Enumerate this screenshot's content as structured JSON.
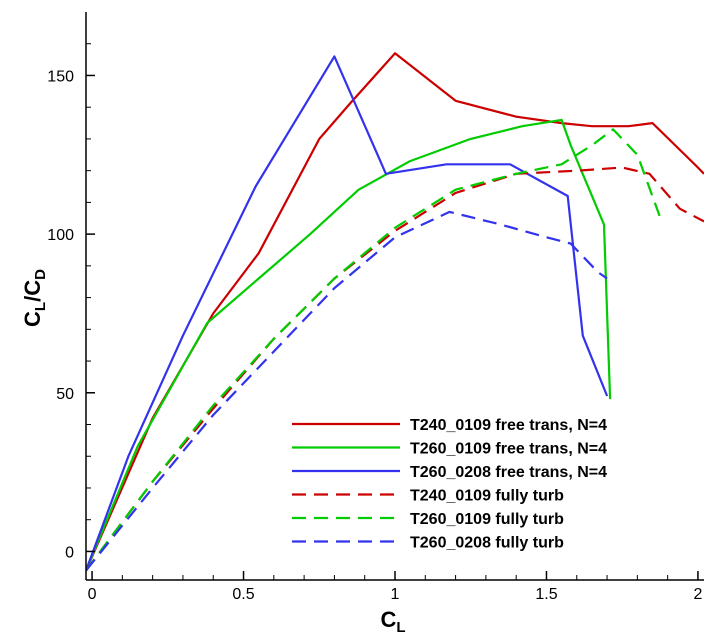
{
  "chart_data": {
    "type": "line",
    "title": "",
    "xlabel": "C_L",
    "ylabel": "C_L/C_D",
    "x_axis_main": "C",
    "x_axis_sub": "L",
    "y_axis_parts": [
      "C",
      "L",
      "/C",
      "D"
    ],
    "xlim": [
      -0.02,
      2.02
    ],
    "ylim": [
      -9,
      170
    ],
    "xticks": [
      0,
      0.5,
      1,
      1.5,
      2
    ],
    "xtick_labels": [
      "0",
      "0.5",
      "1",
      "1.5",
      "2"
    ],
    "yticks": [
      0,
      50,
      100,
      150
    ],
    "ytick_labels": [
      "0",
      "50",
      "100",
      "150"
    ],
    "grid": false,
    "legend_position": "bottom-right",
    "series": [
      {
        "name": "T240_0109 free trans, N=4",
        "color": "#cc0000",
        "dash": "solid",
        "x": [
          -0.02,
          0.2,
          0.4,
          0.55,
          0.75,
          0.85,
          1.0,
          1.2,
          1.4,
          1.55,
          1.65,
          1.77,
          1.85,
          2.0,
          2.02
        ],
        "y": [
          -6,
          42,
          75,
          94,
          130,
          141,
          157,
          142,
          137,
          135,
          134,
          134,
          135,
          121,
          119
        ]
      },
      {
        "name": "T260_0109 free trans, N=4",
        "color": "#00cc00",
        "dash": "solid",
        "x": [
          -0.02,
          0.15,
          0.38,
          0.55,
          0.72,
          0.88,
          1.05,
          1.25,
          1.42,
          1.55,
          1.58,
          1.69,
          1.71
        ],
        "y": [
          -6,
          33,
          72,
          86,
          100,
          114,
          123,
          130,
          134,
          136,
          128,
          103,
          48
        ]
      },
      {
        "name": "T260_0208 free trans, N=4",
        "color": "#3333ee",
        "dash": "solid",
        "x": [
          -0.02,
          0.12,
          0.3,
          0.54,
          0.8,
          0.97,
          1.17,
          1.38,
          1.57,
          1.62,
          1.7
        ],
        "y": [
          -6,
          30,
          68,
          115,
          156,
          119,
          122,
          122,
          112,
          68,
          49
        ]
      },
      {
        "name": "T240_0109 fully turb",
        "color": "#cc0000",
        "dash": "dashed",
        "x": [
          -0.02,
          0.2,
          0.4,
          0.6,
          0.8,
          1.0,
          1.2,
          1.4,
          1.6,
          1.75,
          1.84,
          1.94,
          2.02
        ],
        "y": [
          -6,
          22,
          45,
          67,
          86,
          101,
          113,
          119,
          120,
          121,
          119,
          108,
          104
        ]
      },
      {
        "name": "T260_0109 fully turb",
        "color": "#00cc00",
        "dash": "dashed",
        "x": [
          -0.02,
          0.2,
          0.4,
          0.6,
          0.8,
          1.0,
          1.2,
          1.4,
          1.55,
          1.65,
          1.72,
          1.8,
          1.88
        ],
        "y": [
          -6,
          22,
          46,
          67,
          86,
          102,
          114,
          119,
          122,
          128,
          133,
          125,
          104
        ]
      },
      {
        "name": "T260_0208 fully turb",
        "color": "#3333ee",
        "dash": "dashed",
        "x": [
          -0.02,
          0.2,
          0.4,
          0.6,
          0.8,
          1.0,
          1.18,
          1.35,
          1.5,
          1.58,
          1.62,
          1.67,
          1.7
        ],
        "y": [
          -6,
          20,
          43,
          63,
          83,
          99,
          107,
          103,
          99,
          97,
          93,
          88,
          86
        ]
      }
    ]
  }
}
